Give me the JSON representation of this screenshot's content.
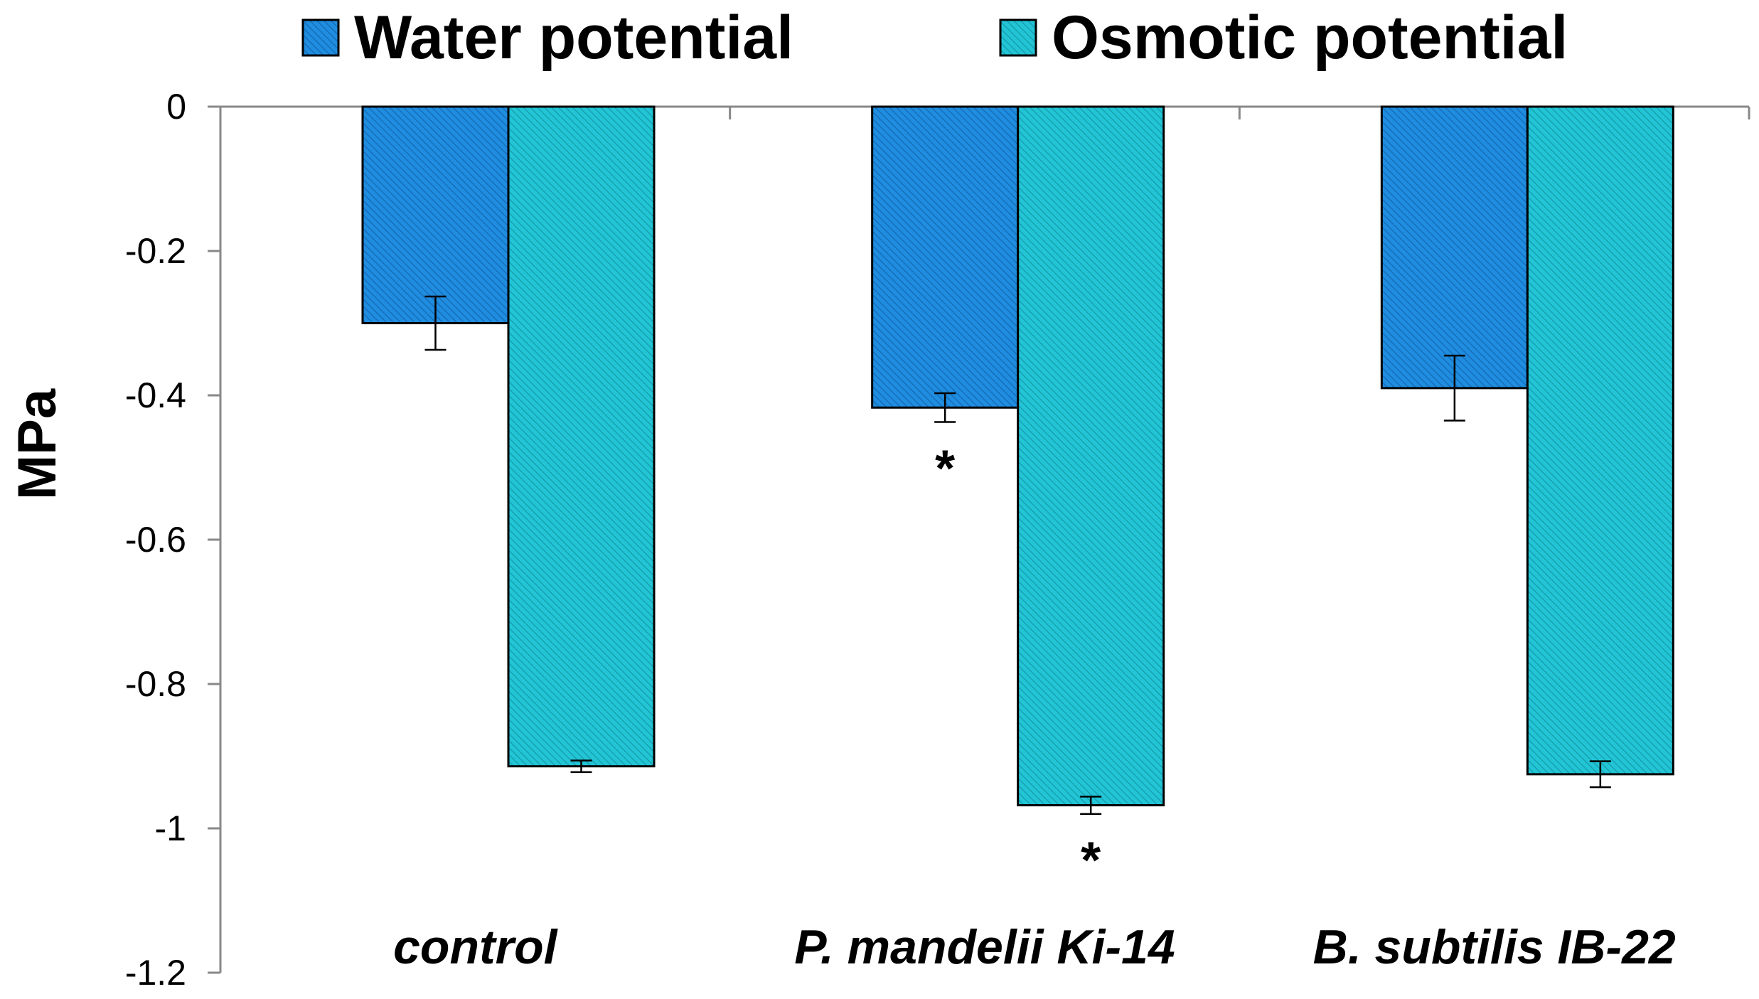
{
  "chart_data": {
    "type": "bar",
    "title": "",
    "xlabel": "",
    "ylabel": "MPa",
    "ylim": [
      -1.2,
      0
    ],
    "yticks": [
      0,
      -0.2,
      -0.4,
      -0.6,
      -0.8,
      -1,
      -1.2
    ],
    "ytick_labels": [
      "0",
      "-0.2",
      "-0.4",
      "-0.6",
      "-0.8",
      "-1",
      "-1.2"
    ],
    "categories": [
      "control",
      "P. mandelii Ki-14",
      "B. subtilis IB-22"
    ],
    "series": [
      {
        "name": "Water potential",
        "color": "#1f8de0",
        "values": [
          -0.3,
          -0.417,
          -0.39
        ],
        "errors": [
          0.037,
          0.02,
          0.045
        ],
        "significance": [
          "",
          "*",
          ""
        ]
      },
      {
        "name": "Osmotic potential",
        "color": "#22c5d6",
        "values": [
          -0.914,
          -0.968,
          -0.925
        ],
        "errors": [
          0.008,
          0.012,
          0.018
        ],
        "significance": [
          "",
          "*",
          ""
        ]
      }
    ],
    "legend_position": "top",
    "grid": false
  }
}
